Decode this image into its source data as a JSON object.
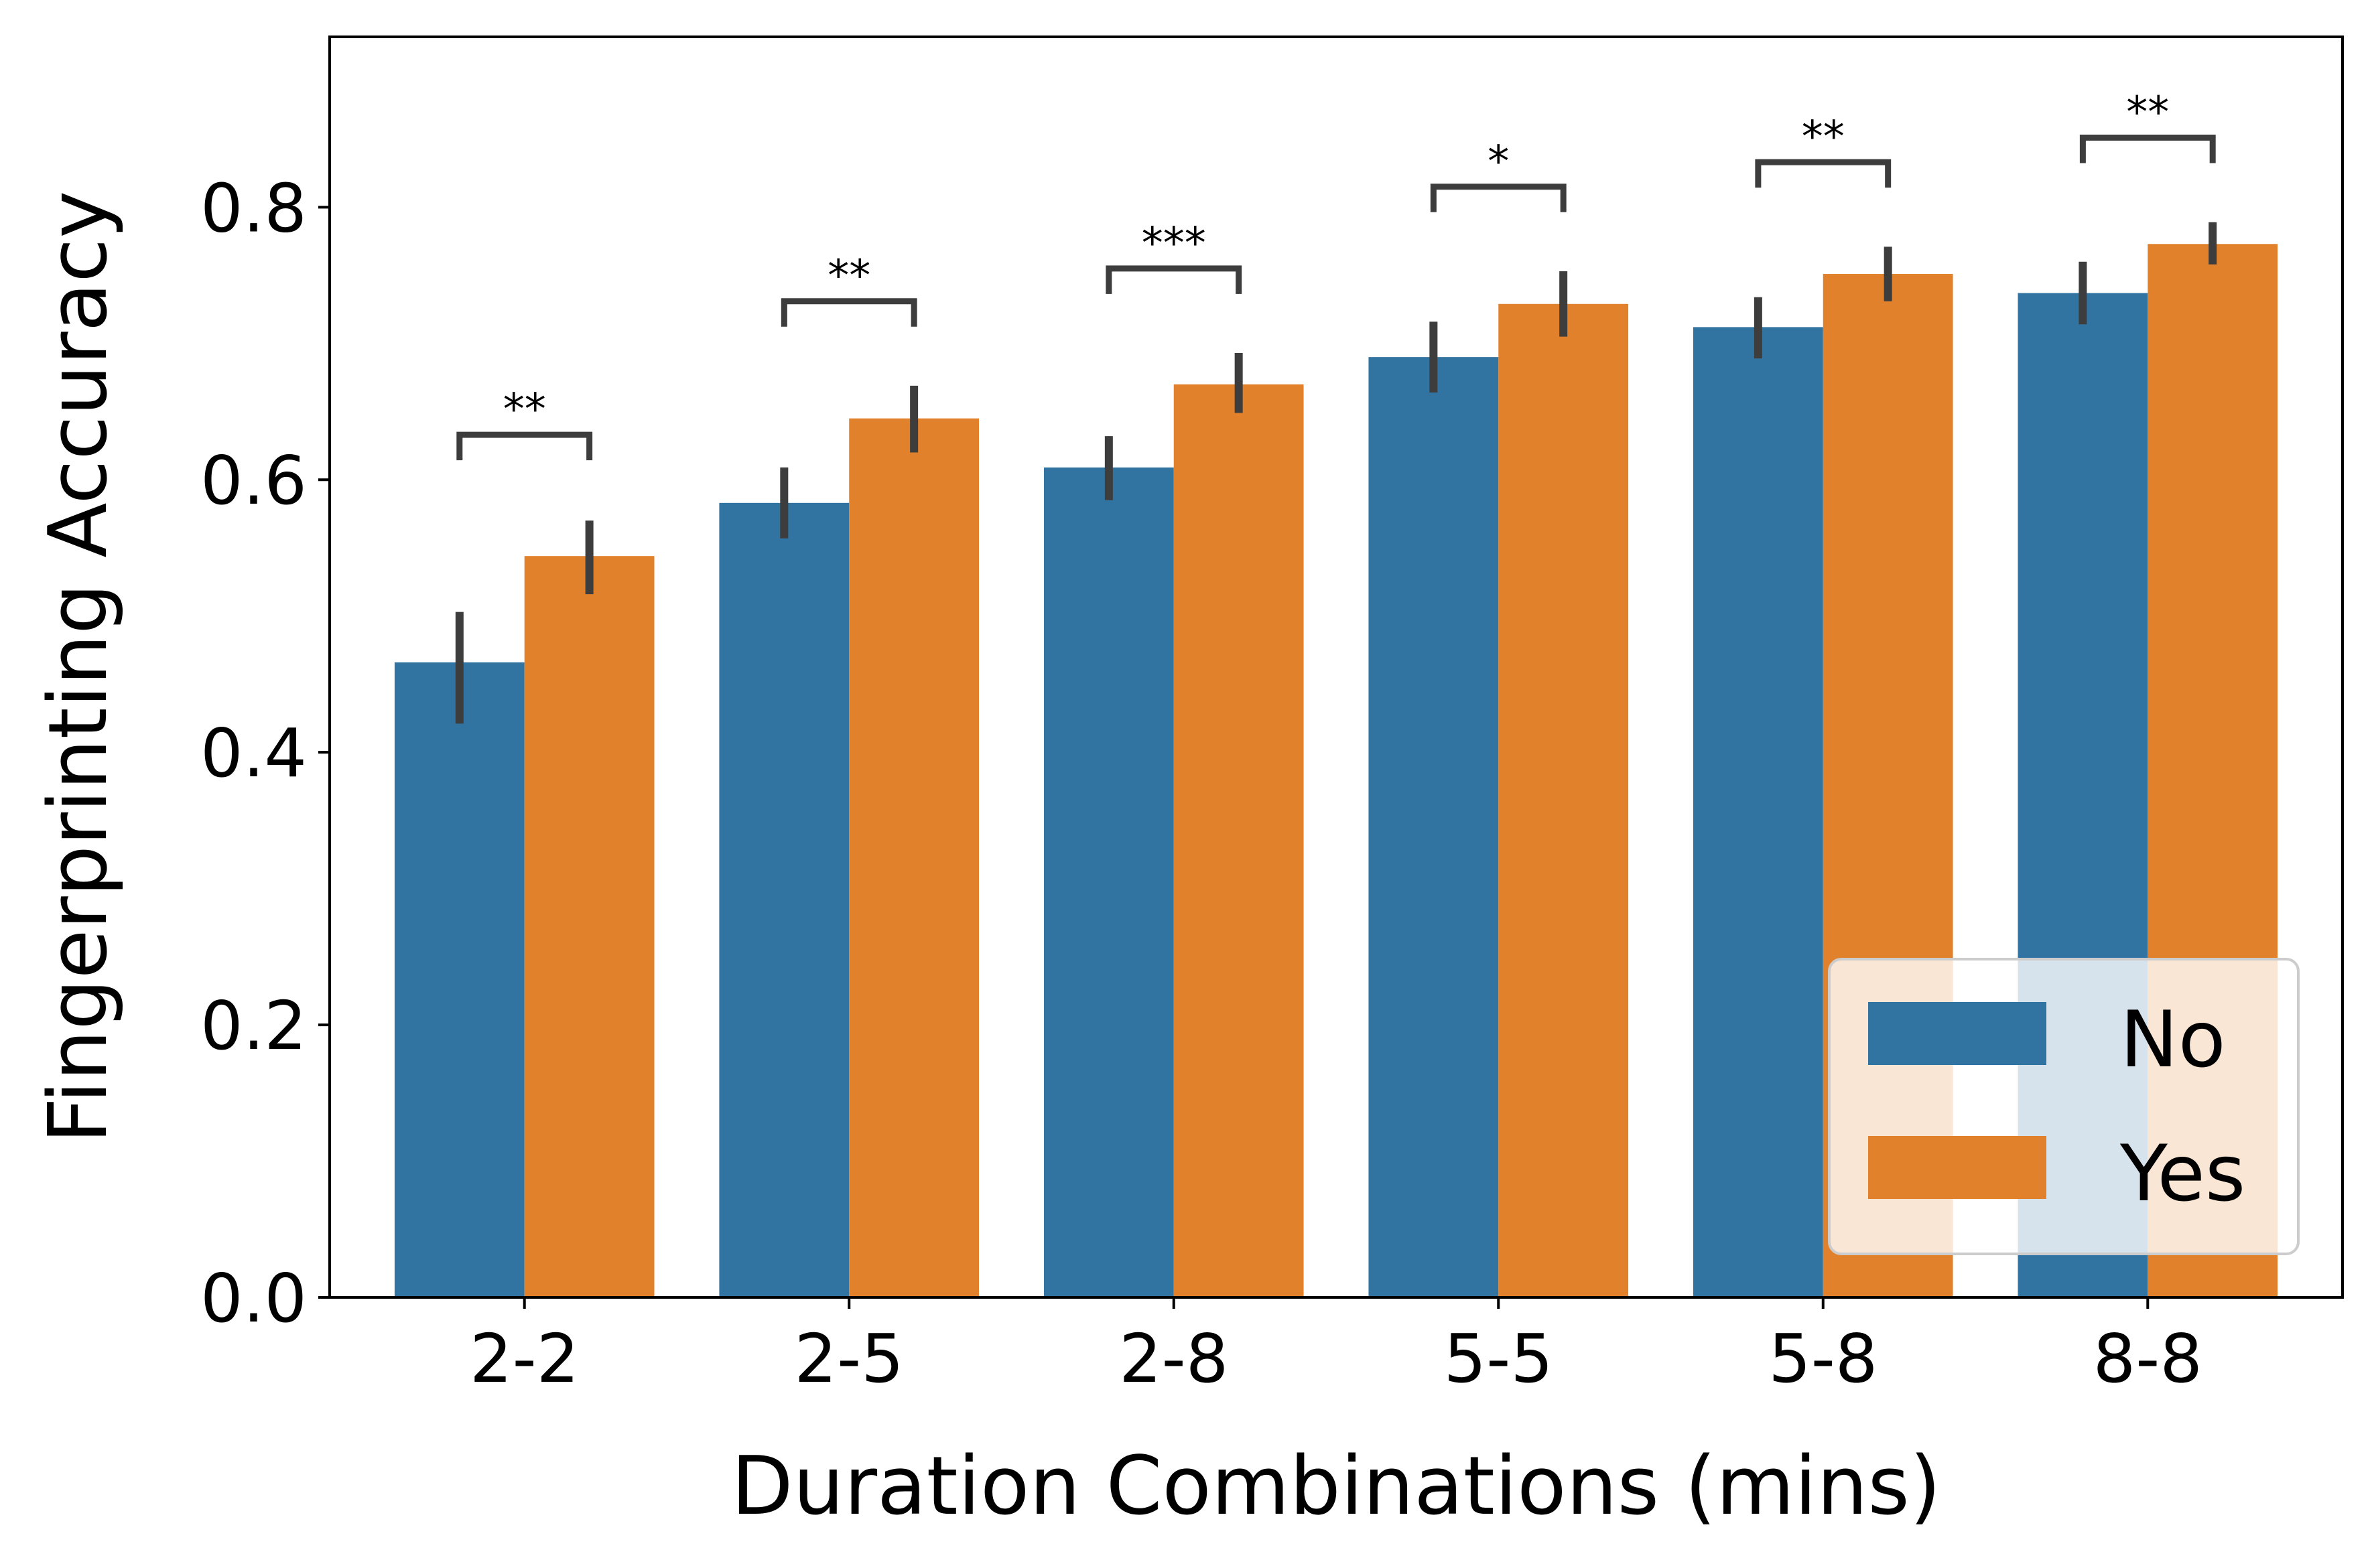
{
  "chart_data": {
    "type": "bar",
    "title": "",
    "xlabel": "Duration Combinations (mins)",
    "ylabel": "Fingerprinting Accuracy",
    "ylim": [
      0,
      0.925
    ],
    "yticks": [
      "0.0",
      "0.2",
      "0.4",
      "0.6",
      "0.8"
    ],
    "ytick_values": [
      0,
      0.2,
      0.4,
      0.6,
      0.8
    ],
    "categories": [
      "2-2",
      "2-5",
      "2-8",
      "5-5",
      "5-8",
      "8-8"
    ],
    "series": [
      {
        "name": "No",
        "color": "#3274a1",
        "values": [
          0.466,
          0.583,
          0.609,
          0.69,
          0.712,
          0.737
        ],
        "ci": [
          [
            0.421,
            0.503
          ],
          [
            0.557,
            0.609
          ],
          [
            0.585,
            0.632
          ],
          [
            0.664,
            0.716
          ],
          [
            0.689,
            0.734
          ],
          [
            0.714,
            0.76
          ]
        ]
      },
      {
        "name": "Yes",
        "color": "#e1812c",
        "values": [
          0.544,
          0.645,
          0.67,
          0.729,
          0.751,
          0.773
        ],
        "ci": [
          [
            0.516,
            0.57
          ],
          [
            0.62,
            0.669
          ],
          [
            0.649,
            0.693
          ],
          [
            0.705,
            0.753
          ],
          [
            0.731,
            0.771
          ],
          [
            0.758,
            0.789
          ]
        ]
      }
    ],
    "significance": [
      {
        "category": "2-2",
        "label": "**",
        "y": 0.633
      },
      {
        "category": "2-5",
        "label": "**",
        "y": 0.731
      },
      {
        "category": "2-8",
        "label": "***",
        "y": 0.755
      },
      {
        "category": "5-5",
        "label": "*",
        "y": 0.815
      },
      {
        "category": "5-8",
        "label": "**",
        "y": 0.833
      },
      {
        "category": "8-8",
        "label": "**",
        "y": 0.851
      }
    ],
    "legend": {
      "placement": "lower-right",
      "entries": [
        "No",
        "Yes"
      ]
    },
    "grid": false
  }
}
